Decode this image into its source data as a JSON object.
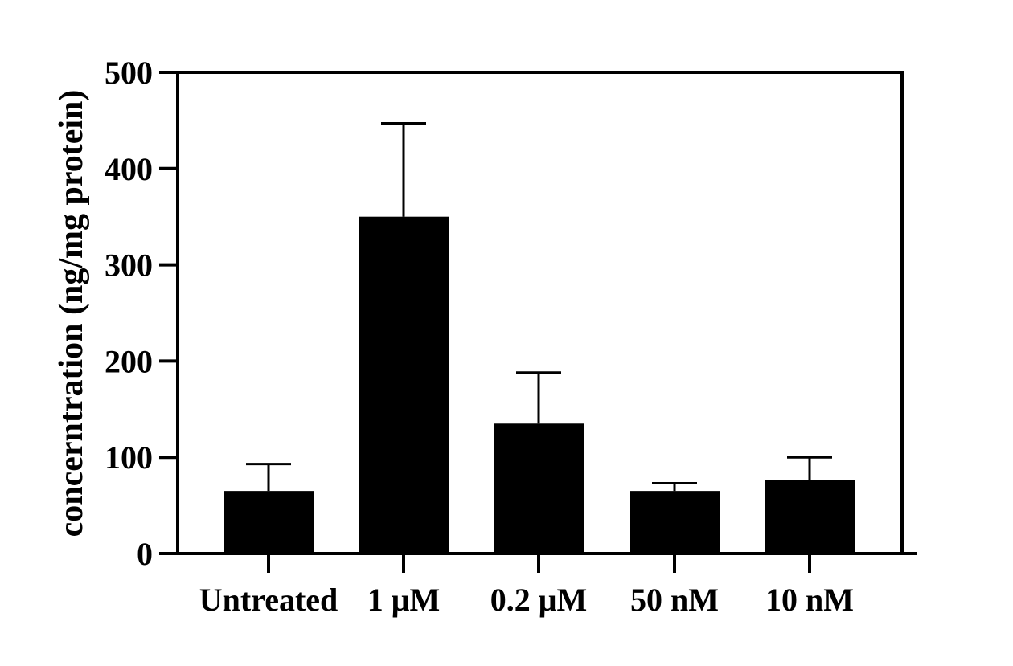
{
  "chart_data": {
    "type": "bar",
    "title": "",
    "xlabel": "",
    "ylabel": "concerntration (ng/mg protein)",
    "categories": [
      "Untreated",
      "1 μM",
      "0.2 μM",
      "50 nM",
      "10 nM"
    ],
    "values": [
      65,
      350,
      135,
      65,
      76
    ],
    "error_upper": [
      93,
      447,
      188,
      73,
      100
    ],
    "ylim": [
      0,
      500
    ],
    "yticks": [
      0,
      100,
      200,
      300,
      400,
      500
    ],
    "ytick_labels": [
      "0",
      "100",
      "200",
      "300",
      "400",
      "500"
    ],
    "grid": false,
    "legend": "none",
    "bar_color": "#000000",
    "axis_color": "#000000"
  }
}
